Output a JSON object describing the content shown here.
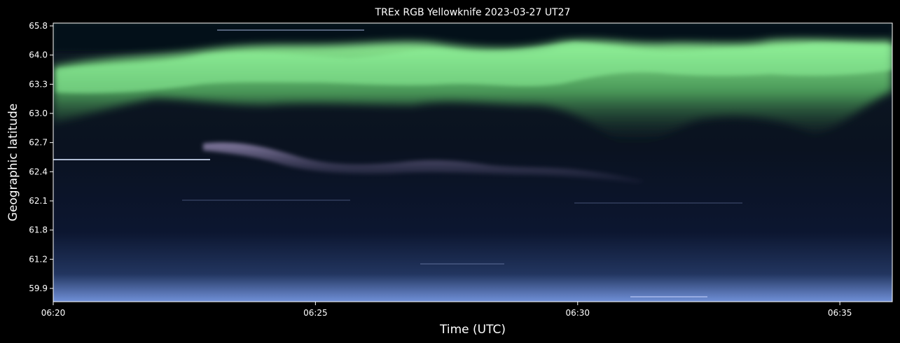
{
  "chart_data": {
    "type": "heatmap",
    "title": "TREx RGB Yellowknife 2023-03-27 UT27",
    "xlabel": "Time (UTC)",
    "ylabel": "Geographic latitude",
    "x_ticks": [
      "06:20",
      "06:25",
      "06:30",
      "06:35"
    ],
    "x_tick_minutes": [
      0,
      5,
      10,
      15
    ],
    "x_range_minutes": [
      0,
      16
    ],
    "y_ticks": [
      "65.8",
      "64.0",
      "63.3",
      "63.0",
      "62.7",
      "62.4",
      "62.1",
      "61.8",
      "61.2",
      "59.9"
    ],
    "grid": false,
    "legend": "none",
    "colors": {
      "background": "#000000",
      "text": "#ffffff",
      "aurora_green": "#7cf08a",
      "aurora_violet": "#a89cc8",
      "sky_dark": "#0b1426",
      "horizon_blue": "#6f8fd8"
    },
    "features": {
      "green_arc_latitude": "63.3-64.0",
      "violet_arc_latitude": "62.4-62.7"
    }
  }
}
